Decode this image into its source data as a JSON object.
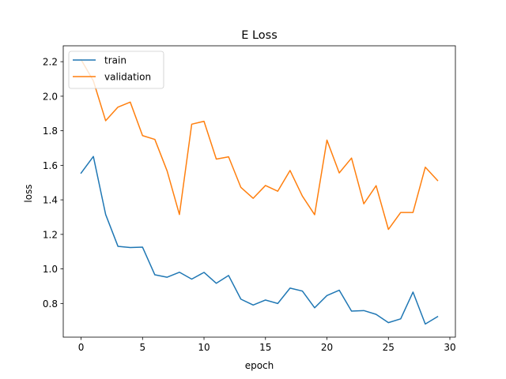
{
  "chart_data": {
    "type": "line",
    "title": "E Loss",
    "xlabel": "epoch",
    "ylabel": "loss",
    "xlim": [
      -1.45,
      30.45
    ],
    "ylim": [
      0.605,
      2.292
    ],
    "xticks": [
      0,
      5,
      10,
      15,
      20,
      25,
      30
    ],
    "yticks": [
      0.8,
      1.0,
      1.2,
      1.4,
      1.6,
      1.8,
      2.0,
      2.2
    ],
    "grid": false,
    "legend_position": "upper-left",
    "x": [
      0,
      1,
      2,
      3,
      4,
      5,
      6,
      7,
      8,
      9,
      10,
      11,
      12,
      13,
      14,
      15,
      16,
      17,
      18,
      19,
      20,
      21,
      22,
      23,
      24,
      25,
      26,
      27,
      28,
      29
    ],
    "series": [
      {
        "name": "train",
        "color": "#1f77b4",
        "values": [
          1.555,
          1.651,
          1.315,
          1.131,
          1.124,
          1.126,
          0.966,
          0.952,
          0.981,
          0.941,
          0.98,
          0.917,
          0.962,
          0.825,
          0.791,
          0.82,
          0.8,
          0.889,
          0.872,
          0.775,
          0.846,
          0.877,
          0.756,
          0.759,
          0.737,
          0.689,
          0.711,
          0.866,
          0.681,
          0.724
        ]
      },
      {
        "name": "validation",
        "color": "#ff7f0e",
        "values": [
          2.212,
          2.089,
          1.858,
          1.937,
          1.966,
          1.772,
          1.75,
          1.567,
          1.315,
          1.838,
          1.855,
          1.636,
          1.649,
          1.472,
          1.409,
          1.483,
          1.45,
          1.57,
          1.422,
          1.314,
          1.746,
          1.556,
          1.642,
          1.377,
          1.482,
          1.229,
          1.327,
          1.327,
          1.589,
          1.512
        ]
      }
    ]
  }
}
